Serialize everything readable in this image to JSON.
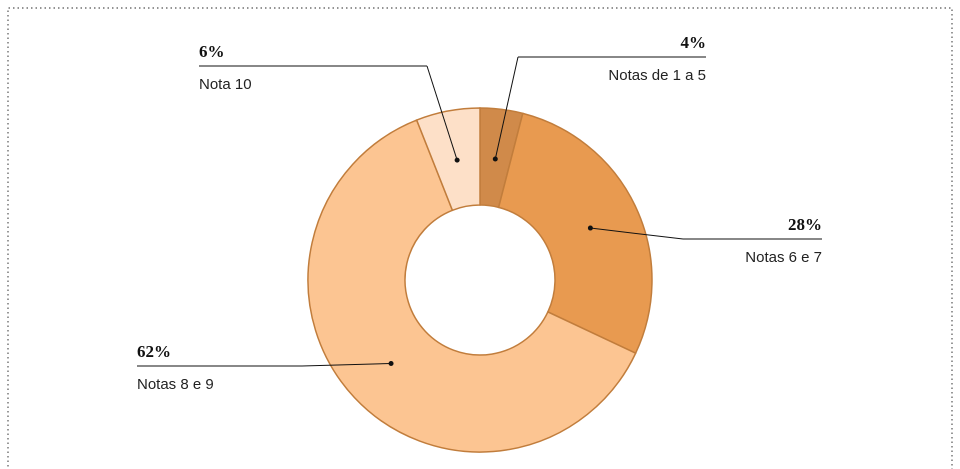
{
  "chart_data": {
    "type": "donut",
    "categories": [
      "Notas de 1 a 5",
      "Notas 6 e 7",
      "Notas 8 e 9",
      "Nota 10"
    ],
    "values": [
      4,
      28,
      62,
      6
    ],
    "value_labels": [
      "4%",
      "28%",
      "62%",
      "6%"
    ],
    "colors": [
      "#d08a4a",
      "#e89a50",
      "#fcc592",
      "#fde0c8"
    ]
  }
}
